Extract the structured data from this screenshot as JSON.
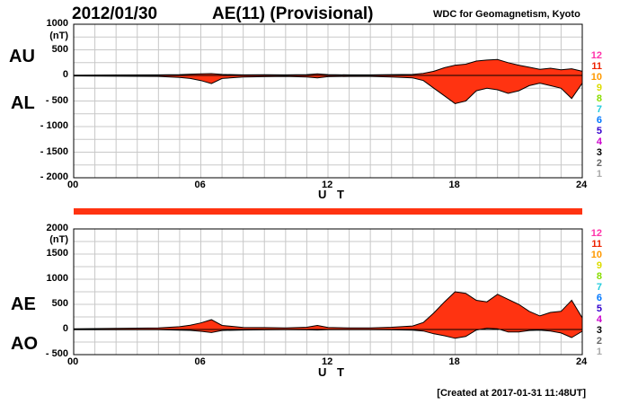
{
  "header": {
    "date": "2012/01/30",
    "title": "AE(11) (Provisional)",
    "source": "WDC for Geomagnetism, Kyoto"
  },
  "footer": {
    "created": "[Created at 2017-01-31 11:48UT]"
  },
  "legend": {
    "items": [
      {
        "label": "12",
        "color": "#ff33aa"
      },
      {
        "label": "11",
        "color": "#ee2200"
      },
      {
        "label": "10",
        "color": "#ff9900"
      },
      {
        "label": "9",
        "color": "#dddd00"
      },
      {
        "label": "8",
        "color": "#88dd00"
      },
      {
        "label": "7",
        "color": "#22ccdd"
      },
      {
        "label": "6",
        "color": "#0077ff"
      },
      {
        "label": "5",
        "color": "#3300cc"
      },
      {
        "label": "4",
        "color": "#cc00cc"
      },
      {
        "label": "3",
        "color": "#000000"
      },
      {
        "label": "2",
        "color": "#666666"
      },
      {
        "label": "1",
        "color": "#aaaaaa"
      }
    ]
  },
  "chart_data": [
    {
      "type": "area",
      "id": "au-al",
      "labels": {
        "upper": "AU",
        "lower": "AL",
        "unit": "(nT)",
        "xlabel": "U T"
      },
      "ylim": [
        -2000,
        1000
      ],
      "yticks": [
        1000,
        500,
        0,
        -500,
        -1000,
        -1500,
        -2000
      ],
      "ytick_labels": [
        "1000",
        "500",
        "0",
        "- 500",
        "- 1000",
        "- 1500",
        "- 2000"
      ],
      "xlim": [
        0,
        24
      ],
      "xticks": [
        0,
        6,
        12,
        18,
        24
      ],
      "xtick_labels": [
        "00",
        "06",
        "12",
        "18",
        "24"
      ],
      "fill_color": "#ff3311",
      "series": [
        {
          "name": "AU",
          "x": [
            0,
            2,
            4,
            5,
            5.5,
            6,
            6.5,
            7,
            8,
            9,
            10,
            11,
            11.5,
            12,
            13,
            14,
            15,
            16,
            16.5,
            17,
            17.5,
            18,
            18.5,
            19,
            19.5,
            20,
            20.5,
            21,
            21.5,
            22,
            22.5,
            23,
            23.5,
            24
          ],
          "y": [
            5,
            8,
            10,
            15,
            25,
            30,
            35,
            20,
            10,
            12,
            10,
            15,
            30,
            15,
            10,
            10,
            15,
            20,
            40,
            80,
            150,
            200,
            220,
            280,
            300,
            310,
            250,
            200,
            160,
            120,
            140,
            110,
            130,
            80
          ]
        },
        {
          "name": "AL",
          "x": [
            0,
            2,
            4,
            5,
            5.5,
            6,
            6.5,
            7,
            8,
            9,
            10,
            11,
            11.5,
            12,
            13,
            14,
            15,
            16,
            16.5,
            17,
            17.5,
            18,
            18.5,
            19,
            19.5,
            20,
            20.5,
            21,
            21.5,
            22,
            22.5,
            23,
            23.5,
            24
          ],
          "y": [
            -10,
            -15,
            -20,
            -40,
            -60,
            -100,
            -160,
            -60,
            -30,
            -25,
            -20,
            -30,
            -50,
            -25,
            -20,
            -20,
            -30,
            -50,
            -100,
            -250,
            -400,
            -550,
            -500,
            -300,
            -250,
            -280,
            -350,
            -300,
            -200,
            -150,
            -200,
            -250,
            -450,
            -150
          ]
        }
      ]
    },
    {
      "type": "area",
      "id": "ae-ao",
      "labels": {
        "upper": "AE",
        "lower": "AO",
        "unit": "(nT)",
        "xlabel": "U T"
      },
      "ylim": [
        -500,
        2000
      ],
      "yticks": [
        2000,
        1500,
        1000,
        500,
        0,
        -500
      ],
      "ytick_labels": [
        "2000",
        "1500",
        "1000",
        "500",
        "0",
        "- 500"
      ],
      "xlim": [
        0,
        24
      ],
      "xticks": [
        0,
        6,
        12,
        18,
        24
      ],
      "xtick_labels": [
        "00",
        "06",
        "12",
        "18",
        "24"
      ],
      "fill_color": "#ff3311",
      "series": [
        {
          "name": "AE",
          "x": [
            0,
            2,
            4,
            5,
            5.5,
            6,
            6.5,
            7,
            8,
            9,
            10,
            11,
            11.5,
            12,
            13,
            14,
            15,
            16,
            16.5,
            17,
            17.5,
            18,
            18.5,
            19,
            19.5,
            20,
            20.5,
            21,
            21.5,
            22,
            22.5,
            23,
            23.5,
            24
          ],
          "y": [
            15,
            23,
            30,
            55,
            85,
            130,
            195,
            80,
            40,
            37,
            30,
            45,
            80,
            40,
            30,
            30,
            45,
            70,
            140,
            330,
            550,
            750,
            720,
            580,
            550,
            700,
            600,
            500,
            360,
            270,
            340,
            360,
            580,
            230
          ]
        },
        {
          "name": "AO",
          "x": [
            0,
            2,
            4,
            5,
            5.5,
            6,
            6.5,
            7,
            8,
            9,
            10,
            11,
            11.5,
            12,
            13,
            14,
            15,
            16,
            16.5,
            17,
            17.5,
            18,
            18.5,
            19,
            19.5,
            20,
            20.5,
            21,
            21.5,
            22,
            22.5,
            23,
            23.5,
            24
          ],
          "y": [
            -3,
            -4,
            -5,
            -12,
            -18,
            -35,
            -60,
            -20,
            -10,
            -7,
            -5,
            -8,
            -10,
            -5,
            -5,
            -5,
            -8,
            -15,
            -30,
            -85,
            -125,
            -175,
            -140,
            -10,
            25,
            15,
            -50,
            -50,
            -20,
            -15,
            -30,
            -70,
            -160,
            -35
          ]
        }
      ]
    }
  ]
}
